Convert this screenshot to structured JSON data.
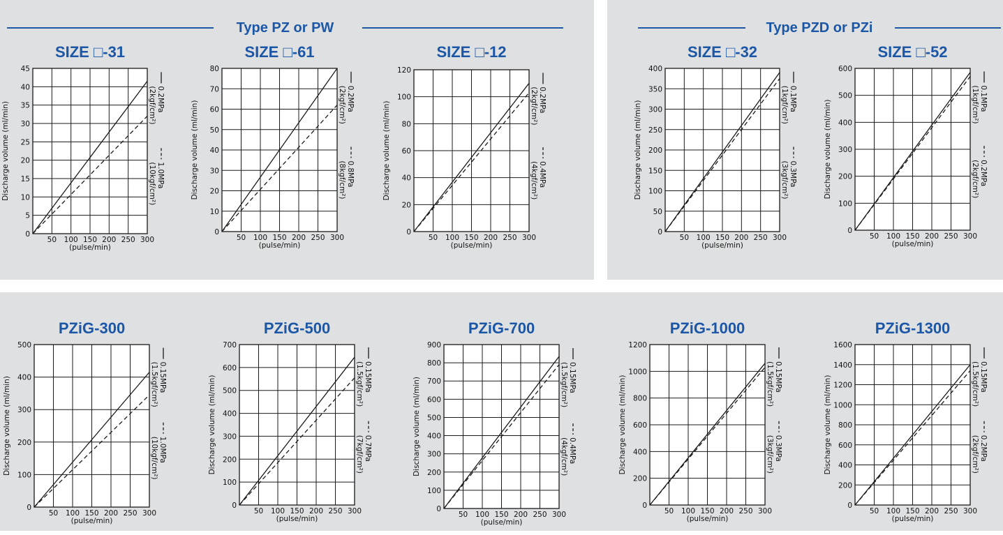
{
  "groups": [
    {
      "label": "Type PZ or PW"
    },
    {
      "label": "Type PZD or PZi"
    }
  ],
  "common": {
    "ylabel": "Discharge volume (ml/min)",
    "xunit": "(pulse/min)",
    "x_ticks": [
      "50",
      "100",
      "150",
      "200",
      "250",
      "300"
    ],
    "line_color": "#1a1a1a",
    "title_color": "#1b57a6",
    "panel_color": "#dfe0e2"
  },
  "chart_data": [
    {
      "type": "line",
      "title": "SIZE □-31",
      "xlabel": "(pulse/min)",
      "ylabel": "Discharge volume (ml/min)",
      "xlim": [
        0,
        300
      ],
      "ylim": [
        0,
        45
      ],
      "y_ticks": [
        0,
        5,
        10,
        15,
        20,
        25,
        30,
        35,
        40,
        45
      ],
      "series": [
        {
          "name": "0.2MPa (2kgf/cm²)",
          "style": "solid",
          "x": [
            0,
            300
          ],
          "y": [
            0,
            41.5
          ]
        },
        {
          "name": "1.0MPa (10kgf/cm²)",
          "style": "dashed",
          "x": [
            0,
            300
          ],
          "y": [
            0,
            32
          ]
        }
      ]
    },
    {
      "type": "line",
      "title": "SIZE □-61",
      "xlabel": "(pulse/min)",
      "ylabel": "Discharge volume (ml/min)",
      "xlim": [
        0,
        300
      ],
      "ylim": [
        0,
        80
      ],
      "y_ticks": [
        0,
        10,
        20,
        30,
        40,
        50,
        60,
        70,
        80
      ],
      "series": [
        {
          "name": "0.2MPa (2kgf/cm²)",
          "style": "solid",
          "x": [
            0,
            300
          ],
          "y": [
            0,
            80
          ]
        },
        {
          "name": "0.8MPa (8kgf/cm²)",
          "style": "dashed",
          "x": [
            0,
            300
          ],
          "y": [
            0,
            62
          ]
        }
      ]
    },
    {
      "type": "line",
      "title": "SIZE □-12",
      "xlabel": "(pulse/min)",
      "ylabel": "Discharge volume (ml/min)",
      "xlim": [
        0,
        300
      ],
      "ylim": [
        0,
        120
      ],
      "y_ticks": [
        0,
        20,
        40,
        60,
        80,
        100,
        120
      ],
      "series": [
        {
          "name": "0.2MPa (2kgf/cm²)",
          "style": "solid",
          "x": [
            0,
            300
          ],
          "y": [
            0,
            110
          ]
        },
        {
          "name": "0.4MPa (4kgf/cm²)",
          "style": "dashed",
          "x": [
            0,
            300
          ],
          "y": [
            0,
            103
          ]
        }
      ]
    },
    {
      "type": "line",
      "title": "SIZE □-32",
      "xlabel": "(pulse/min)",
      "ylabel": "Discharge volume (ml/min)",
      "xlim": [
        0,
        300
      ],
      "ylim": [
        0,
        400
      ],
      "y_ticks": [
        0,
        50,
        100,
        150,
        200,
        250,
        300,
        350,
        400
      ],
      "series": [
        {
          "name": "0.1MPa (1kgf/cm²)",
          "style": "solid",
          "x": [
            0,
            300
          ],
          "y": [
            0,
            390
          ]
        },
        {
          "name": "0.3MPa (3kgf/cm²)",
          "style": "dashed",
          "x": [
            0,
            300
          ],
          "y": [
            0,
            375
          ]
        }
      ]
    },
    {
      "type": "line",
      "title": "SIZE □-52",
      "xlabel": "(pulse/min)",
      "ylabel": "Discharge volume (ml/min)",
      "xlim": [
        0,
        300
      ],
      "ylim": [
        0,
        600
      ],
      "y_ticks": [
        0,
        100,
        200,
        300,
        400,
        500,
        600
      ],
      "series": [
        {
          "name": "0.1MPa (1kgf/cm²)",
          "style": "solid",
          "x": [
            0,
            300
          ],
          "y": [
            0,
            585
          ]
        },
        {
          "name": "0.2MPa (2kgf/cm²)",
          "style": "dashed",
          "x": [
            0,
            300
          ],
          "y": [
            0,
            570
          ]
        }
      ]
    },
    {
      "type": "line",
      "title": "PZiG-300",
      "xlabel": "(pulse/min)",
      "ylabel": "Discharge volume (ml/min)",
      "xlim": [
        0,
        300
      ],
      "ylim": [
        0,
        500
      ],
      "y_ticks": [
        0,
        100,
        200,
        300,
        400,
        500
      ],
      "series": [
        {
          "name": "0.15MPa (1.5kgf/cm²)",
          "style": "solid",
          "x": [
            0,
            300
          ],
          "y": [
            0,
            415
          ]
        },
        {
          "name": "1.0MPa (10kgf/cm²)",
          "style": "dashed",
          "x": [
            0,
            300
          ],
          "y": [
            0,
            345
          ]
        }
      ]
    },
    {
      "type": "line",
      "title": "PZiG-500",
      "xlabel": "(pulse/min)",
      "ylabel": "Discharge volume (ml/min)",
      "xlim": [
        0,
        300
      ],
      "ylim": [
        0,
        700
      ],
      "y_ticks": [
        0,
        100,
        200,
        300,
        400,
        500,
        600,
        700
      ],
      "series": [
        {
          "name": "0.15MPa (1.5kgf/cm²)",
          "style": "solid",
          "x": [
            0,
            300
          ],
          "y": [
            0,
            645
          ]
        },
        {
          "name": "0.7MPa (7kgf/cm²)",
          "style": "dashed",
          "x": [
            0,
            300
          ],
          "y": [
            0,
            555
          ]
        }
      ]
    },
    {
      "type": "line",
      "title": "PZiG-700",
      "xlabel": "(pulse/min)",
      "ylabel": "Discharge volume (ml/min)",
      "xlim": [
        0,
        300
      ],
      "ylim": [
        0,
        900
      ],
      "y_ticks": [
        0,
        100,
        200,
        300,
        400,
        500,
        600,
        700,
        800,
        900
      ],
      "series": [
        {
          "name": "0.15MPa (1.5kgf/cm²)",
          "style": "solid",
          "x": [
            0,
            300
          ],
          "y": [
            0,
            835
          ]
        },
        {
          "name": "0.4MPa (4kgf/cm²)",
          "style": "dashed",
          "x": [
            0,
            300
          ],
          "y": [
            0,
            790
          ]
        }
      ]
    },
    {
      "type": "line",
      "title": "PZiG-1000",
      "xlabel": "(pulse/min)",
      "ylabel": "Discharge volume (ml/min)",
      "xlim": [
        0,
        300
      ],
      "ylim": [
        0,
        1200
      ],
      "y_ticks": [
        0,
        200,
        400,
        600,
        800,
        1000,
        1200
      ],
      "series": [
        {
          "name": "0.15MPa (1.5kgf/cm²)",
          "style": "solid",
          "x": [
            0,
            300
          ],
          "y": [
            0,
            1060
          ]
        },
        {
          "name": "0.3MPa (3kgf/cm²)",
          "style": "dashed",
          "x": [
            0,
            300
          ],
          "y": [
            0,
            1030
          ]
        }
      ]
    },
    {
      "type": "line",
      "title": "PZiG-1300",
      "xlabel": "(pulse/min)",
      "ylabel": "Discharge volume (ml/min)",
      "xlim": [
        0,
        300
      ],
      "ylim": [
        0,
        1600
      ],
      "y_ticks": [
        0,
        200,
        400,
        600,
        800,
        1000,
        1200,
        1400,
        1600
      ],
      "series": [
        {
          "name": "0.15MPa (1.5kgf/cm²)",
          "style": "solid",
          "x": [
            0,
            300
          ],
          "y": [
            0,
            1400
          ]
        },
        {
          "name": "0.2MPa (2kgf/cm²)",
          "style": "dashed",
          "x": [
            0,
            300
          ],
          "y": [
            0,
            1340
          ]
        }
      ]
    }
  ]
}
